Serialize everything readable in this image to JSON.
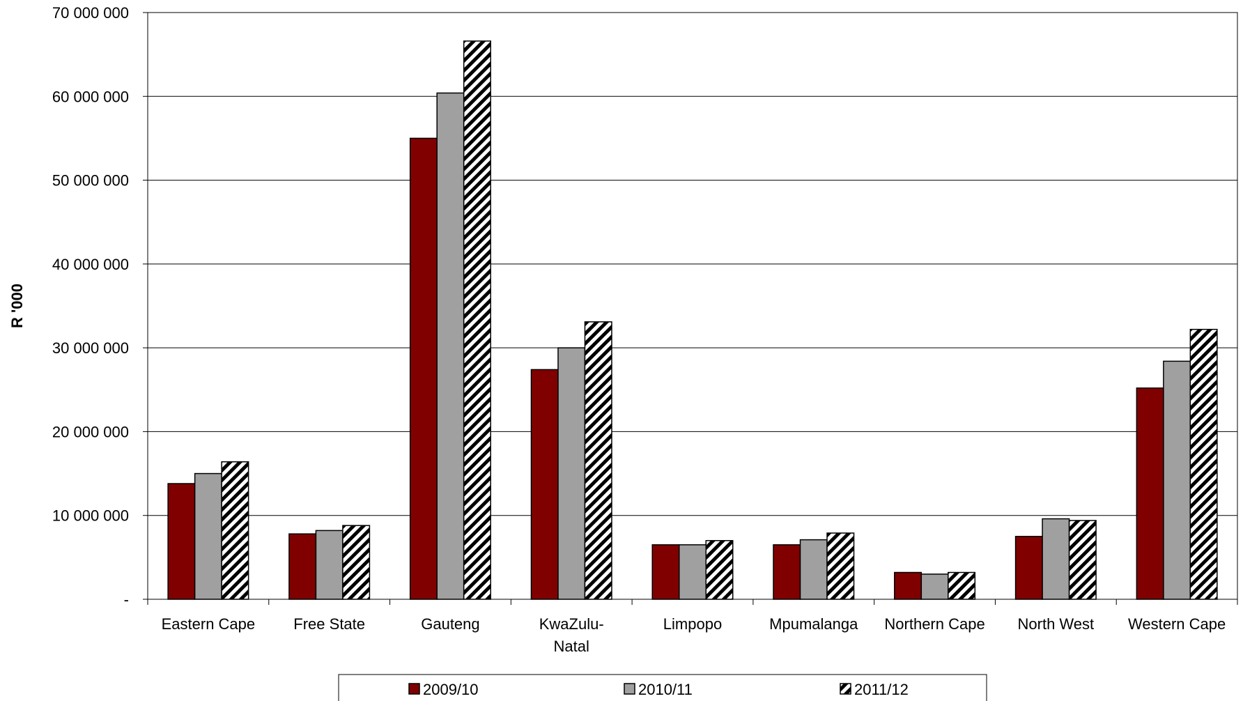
{
  "chart_data": {
    "type": "bar",
    "title": "",
    "xlabel": "",
    "ylabel": "R '000",
    "ylim": [
      0,
      70000000
    ],
    "yticks": [
      {
        "value": 0,
        "label": "-"
      },
      {
        "value": 10000000,
        "label": "10 000 000"
      },
      {
        "value": 20000000,
        "label": "20 000 000"
      },
      {
        "value": 30000000,
        "label": "30 000 000"
      },
      {
        "value": 40000000,
        "label": "40 000 000"
      },
      {
        "value": 50000000,
        "label": "50 000 000"
      },
      {
        "value": 60000000,
        "label": "60 000 000"
      },
      {
        "value": 70000000,
        "label": "70 000 000"
      }
    ],
    "grid": true,
    "legend_position": "bottom",
    "categories": [
      [
        "Eastern Cape"
      ],
      [
        "Free State"
      ],
      [
        "Gauteng"
      ],
      [
        "KwaZulu-",
        "Natal"
      ],
      [
        "Limpopo"
      ],
      [
        "Mpumalanga"
      ],
      [
        "Northern Cape"
      ],
      [
        "North West"
      ],
      [
        "Western Cape"
      ]
    ],
    "series": [
      {
        "name": "2009/10",
        "color": "#800000",
        "pattern": "solid",
        "values": [
          13800000,
          7800000,
          55000000,
          27400000,
          6500000,
          6500000,
          3200000,
          7500000,
          25200000
        ]
      },
      {
        "name": "2010/11",
        "color": "#a0a0a0",
        "pattern": "solid",
        "values": [
          15000000,
          8200000,
          60400000,
          30000000,
          6500000,
          7100000,
          3000000,
          9600000,
          28400000
        ]
      },
      {
        "name": "2011/12",
        "color": "#ffffff",
        "pattern": "hatch",
        "values": [
          16400000,
          8800000,
          66600000,
          33100000,
          7000000,
          7900000,
          3200000,
          9400000,
          32200000
        ]
      }
    ]
  }
}
